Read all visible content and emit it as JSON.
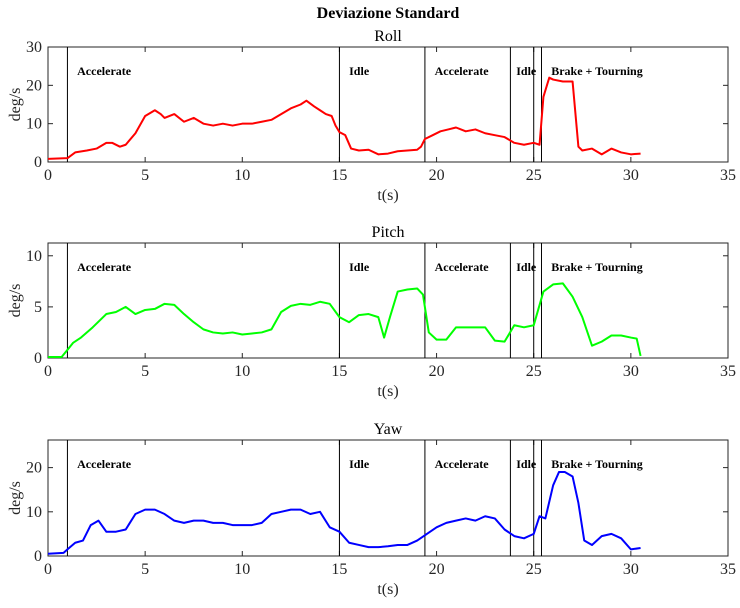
{
  "figure_title": "Deviazione Standard",
  "chart_data": [
    {
      "type": "line",
      "title": "Roll",
      "xlabel": "t(s)",
      "ylabel": "deg/s",
      "xlim": [
        0,
        35
      ],
      "ylim": [
        0,
        30
      ],
      "xticks": [
        0,
        5,
        10,
        15,
        20,
        25,
        30,
        35
      ],
      "yticks": [
        0,
        10,
        20,
        30
      ],
      "grid": false,
      "phase_lines": [
        1.0,
        15.0,
        19.4,
        23.8,
        25.0,
        25.4
      ],
      "phases": [
        {
          "label": "Accelerate",
          "x": 1.5
        },
        {
          "label": "Idle",
          "x": 15.5
        },
        {
          "label": "Accelerate",
          "x": 19.9
        },
        {
          "label": "Idle",
          "x": 24.1
        },
        {
          "label": "Brake + Tourning",
          "x": 25.9
        }
      ],
      "series": [
        {
          "color": "#ff0000",
          "x": [
            0,
            1,
            1.4,
            2,
            2.5,
            3,
            3.3,
            3.7,
            4,
            4.5,
            5,
            5.5,
            5.8,
            6,
            6.5,
            7,
            7.5,
            8,
            8.5,
            9,
            9.5,
            10,
            10.5,
            11,
            11.5,
            12,
            12.5,
            13,
            13.3,
            13.7,
            14,
            14.3,
            14.6,
            14.8,
            15,
            15.3,
            15.6,
            16,
            16.5,
            17,
            17.5,
            18,
            18.5,
            19,
            19.2,
            19.4,
            19.8,
            20.2,
            20.6,
            21,
            21.5,
            22,
            22.5,
            23,
            23.5,
            24,
            24.5,
            25,
            25.3,
            25.5,
            25.8,
            26,
            26.5,
            27,
            27.3,
            27.5,
            28,
            28.5,
            29,
            29.5,
            30,
            30.5
          ],
          "y": [
            0.8,
            1.0,
            2.5,
            3.0,
            3.5,
            5.0,
            5.0,
            4.0,
            4.5,
            7.5,
            12,
            13.5,
            12.5,
            11.5,
            12.5,
            10.5,
            11.5,
            10,
            9.5,
            10,
            9.5,
            10,
            10,
            10.5,
            11,
            12.5,
            14,
            15,
            16,
            14.5,
            13.5,
            12.5,
            12,
            9.5,
            7.8,
            7,
            3.5,
            3,
            3.2,
            2,
            2.2,
            2.8,
            3,
            3.2,
            4,
            6,
            7,
            8,
            8.5,
            9,
            8,
            8.5,
            7.5,
            7,
            6.5,
            5,
            4.5,
            5,
            4.5,
            17,
            22,
            21.5,
            21,
            21,
            4,
            3,
            3.5,
            2,
            3.5,
            2.5,
            2,
            2.2
          ]
        }
      ]
    },
    {
      "type": "line",
      "title": "Pitch",
      "xlabel": "t(s)",
      "ylabel": "deg/s",
      "xlim": [
        0,
        35
      ],
      "ylim": [
        0,
        11.25
      ],
      "xticks": [
        0,
        5,
        10,
        15,
        20,
        25,
        30,
        35
      ],
      "yticks": [
        0,
        5,
        10
      ],
      "grid": false,
      "phase_lines": [
        1.0,
        15.0,
        19.4,
        23.8,
        25.0,
        25.4
      ],
      "phases": [
        {
          "label": "Accelerate",
          "x": 1.5
        },
        {
          "label": "Idle",
          "x": 15.5
        },
        {
          "label": "Accelerate",
          "x": 19.9
        },
        {
          "label": "Idle",
          "x": 24.1
        },
        {
          "label": "Brake + Tourning",
          "x": 25.9
        }
      ],
      "series": [
        {
          "color": "#00ff00",
          "x": [
            0,
            0.7,
            1.0,
            1.3,
            1.7,
            2.3,
            3,
            3.5,
            4,
            4.5,
            5,
            5.5,
            6,
            6.5,
            7,
            7.5,
            8,
            8.5,
            9,
            9.5,
            10,
            10.5,
            11,
            11.5,
            12,
            12.5,
            13,
            13.5,
            14,
            14.5,
            15,
            15.5,
            16,
            16.5,
            17,
            17.3,
            17.6,
            18,
            18.5,
            19,
            19.3,
            19.6,
            20,
            20.5,
            21,
            21.5,
            22,
            22.5,
            23,
            23.5,
            24,
            24.5,
            25,
            25.5,
            26,
            26.5,
            27,
            27.5,
            28,
            28.5,
            29,
            29.5,
            30,
            30.3,
            30.5
          ],
          "y": [
            0.1,
            0.1,
            0.8,
            1.5,
            2.0,
            3.0,
            4.3,
            4.5,
            5.0,
            4.3,
            4.7,
            4.8,
            5.3,
            5.2,
            4.3,
            3.5,
            2.8,
            2.5,
            2.4,
            2.5,
            2.3,
            2.4,
            2.5,
            2.8,
            4.5,
            5.1,
            5.3,
            5.2,
            5.5,
            5.3,
            4.0,
            3.5,
            4.2,
            4.3,
            4.0,
            2.0,
            4.0,
            6.5,
            6.7,
            6.8,
            6.2,
            2.5,
            1.8,
            1.8,
            3.0,
            3.0,
            3.0,
            3.0,
            1.7,
            1.6,
            3.2,
            3.0,
            3.2,
            6.5,
            7.2,
            7.3,
            6.0,
            4.0,
            1.2,
            1.6,
            2.2,
            2.2,
            2.0,
            1.9,
            0.2
          ]
        }
      ]
    },
    {
      "type": "line",
      "title": "Yaw",
      "xlabel": "t(s)",
      "ylabel": "deg/s",
      "xlim": [
        0,
        35
      ],
      "ylim": [
        0,
        26.25
      ],
      "xticks": [
        0,
        5,
        10,
        15,
        20,
        25,
        30,
        35
      ],
      "yticks": [
        0,
        10,
        20
      ],
      "grid": false,
      "phase_lines": [
        1.0,
        15.0,
        19.4,
        23.8,
        25.0,
        25.4
      ],
      "phases": [
        {
          "label": "Accelerate",
          "x": 1.5
        },
        {
          "label": "Idle",
          "x": 15.5
        },
        {
          "label": "Accelerate",
          "x": 19.9
        },
        {
          "label": "Idle",
          "x": 24.1
        },
        {
          "label": "Brake + Tourning",
          "x": 25.9
        }
      ],
      "series": [
        {
          "color": "#0000ff",
          "x": [
            0,
            0.8,
            1.0,
            1.4,
            1.8,
            2.2,
            2.6,
            3,
            3.5,
            4,
            4.5,
            5,
            5.5,
            6,
            6.5,
            7,
            7.5,
            8,
            8.5,
            9,
            9.5,
            10,
            10.5,
            11,
            11.5,
            12,
            12.5,
            13,
            13.5,
            14,
            14.5,
            15,
            15.5,
            16,
            16.5,
            17,
            17.5,
            18,
            18.5,
            19,
            19.5,
            20,
            20.5,
            21,
            21.5,
            22,
            22.5,
            23,
            23.5,
            24,
            24.5,
            25,
            25.3,
            25.6,
            26,
            26.3,
            26.6,
            27,
            27.3,
            27.6,
            28,
            28.5,
            29,
            29.5,
            30,
            30.5
          ],
          "y": [
            0.5,
            0.7,
            1.5,
            3.0,
            3.5,
            7.0,
            8.0,
            5.5,
            5.5,
            6.0,
            9.5,
            10.5,
            10.5,
            9.5,
            8.0,
            7.5,
            8.0,
            8.0,
            7.5,
            7.5,
            7.0,
            7.0,
            7.0,
            7.5,
            9.5,
            10.0,
            10.5,
            10.5,
            9.5,
            10.0,
            6.5,
            5.5,
            3.0,
            2.5,
            2.0,
            2.0,
            2.2,
            2.5,
            2.5,
            3.5,
            5.0,
            6.5,
            7.5,
            8.0,
            8.5,
            8.0,
            9.0,
            8.5,
            6.0,
            4.5,
            4.0,
            5.0,
            9.0,
            8.5,
            16.0,
            19.0,
            19.0,
            18.0,
            12.0,
            3.5,
            2.5,
            4.5,
            5.0,
            4.0,
            1.5,
            1.8
          ]
        }
      ]
    }
  ]
}
